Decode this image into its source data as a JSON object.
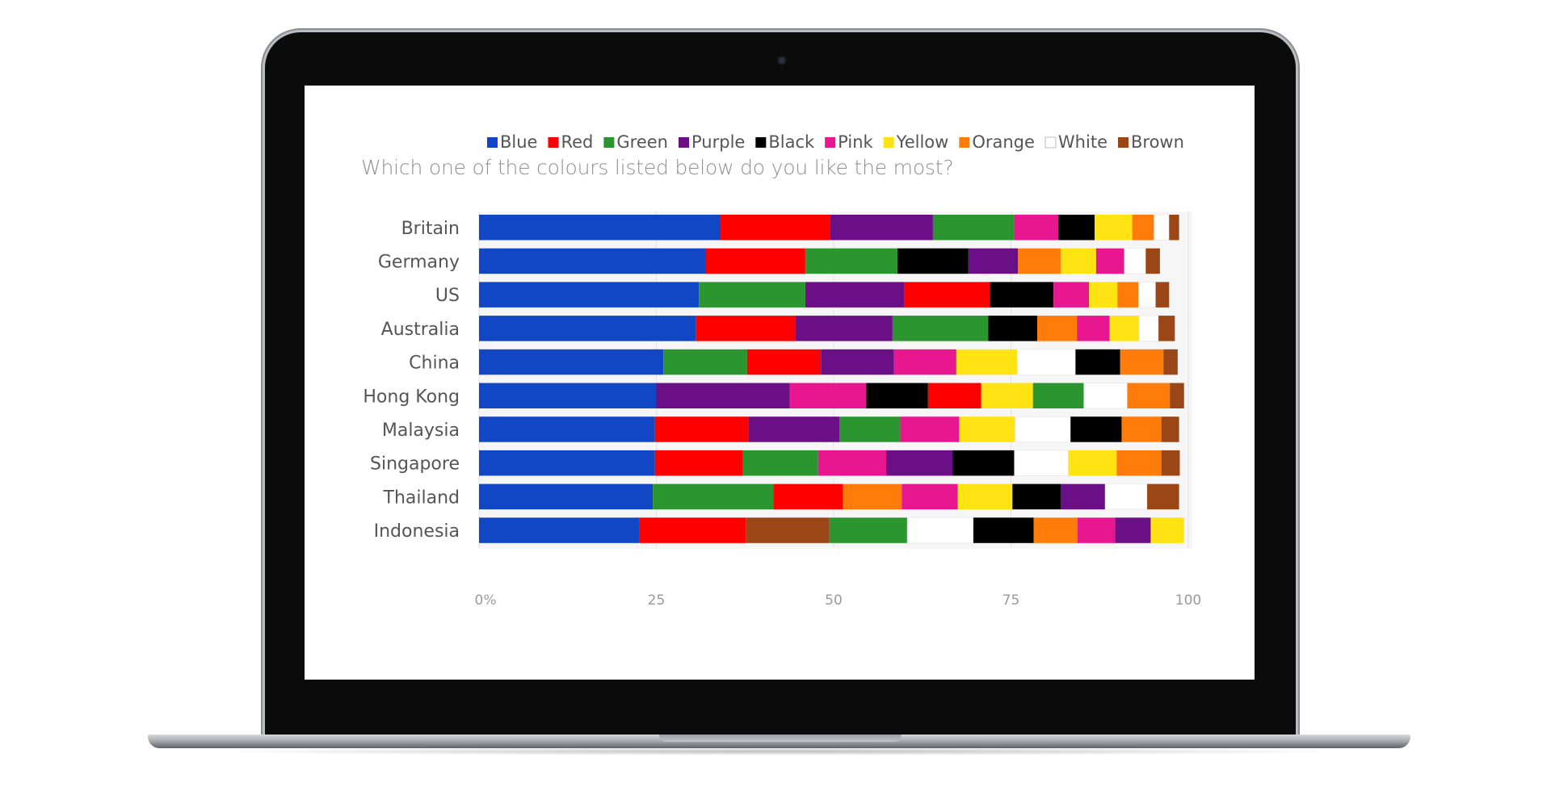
{
  "chart_data": {
    "type": "bar",
    "stacked": true,
    "orientation": "horizontal",
    "title": "Which one of the colours listed below do you like the most?",
    "legend_position": "top",
    "xlim": [
      0,
      100
    ],
    "xticks": [
      0,
      25,
      50,
      75,
      100
    ],
    "xtick_labels": [
      "0%",
      "25",
      "50",
      "75",
      "100"
    ],
    "grid": true,
    "colors": {
      "Blue": "#1147c4",
      "Red": "#ff0000",
      "Green": "#2b962f",
      "Purple": "#6b0f86",
      "Black": "#000000",
      "Pink": "#e8168f",
      "Yellow": "#ffe312",
      "Orange": "#ff7c0a",
      "White": "#ffffff",
      "Brown": "#9b4617"
    },
    "legend": [
      "Blue",
      "Red",
      "Green",
      "Purple",
      "Black",
      "Pink",
      "Yellow",
      "Orange",
      "White",
      "Brown"
    ],
    "categories": [
      {
        "name": "Britain",
        "segments": [
          [
            "Blue",
            34
          ],
          [
            "Red",
            15.5
          ],
          [
            "Purple",
            14.5
          ],
          [
            "Green",
            11.5
          ],
          [
            "Pink",
            6.2
          ],
          [
            "Black",
            5.1
          ],
          [
            "Yellow",
            5.3
          ],
          [
            "Orange",
            3.1
          ],
          [
            "White",
            2.1
          ],
          [
            "Brown",
            1.4
          ]
        ]
      },
      {
        "name": "Germany",
        "segments": [
          [
            "Blue",
            32
          ],
          [
            "Red",
            14
          ],
          [
            "Green",
            13
          ],
          [
            "Black",
            10
          ],
          [
            "Purple",
            7
          ],
          [
            "Orange",
            6
          ],
          [
            "Yellow",
            5
          ],
          [
            "Pink",
            4
          ],
          [
            "White",
            3
          ],
          [
            "Brown",
            2
          ]
        ]
      },
      {
        "name": "US",
        "segments": [
          [
            "Blue",
            31
          ],
          [
            "Green",
            15
          ],
          [
            "Purple",
            14
          ],
          [
            "Red",
            12
          ],
          [
            "Black",
            9
          ],
          [
            "Pink",
            5
          ],
          [
            "Yellow",
            4
          ],
          [
            "Orange",
            3
          ],
          [
            "White",
            2.4
          ],
          [
            "Brown",
            1.9
          ]
        ]
      },
      {
        "name": "Australia",
        "segments": [
          [
            "Blue",
            30.6
          ],
          [
            "Red",
            14
          ],
          [
            "Purple",
            13.7
          ],
          [
            "Green",
            13.5
          ],
          [
            "Black",
            6.9
          ],
          [
            "Orange",
            5.6
          ],
          [
            "Pink",
            4.6
          ],
          [
            "Yellow",
            4.2
          ],
          [
            "White",
            2.7
          ],
          [
            "Brown",
            2.3
          ]
        ]
      },
      {
        "name": "China",
        "segments": [
          [
            "Blue",
            26
          ],
          [
            "Green",
            11.8
          ],
          [
            "Red",
            10.4
          ],
          [
            "Purple",
            10.3
          ],
          [
            "Pink",
            8.8
          ],
          [
            "Yellow",
            8.6
          ],
          [
            "White",
            8.2
          ],
          [
            "Black",
            6.3
          ],
          [
            "Orange",
            6.1
          ],
          [
            "Brown",
            2
          ]
        ]
      },
      {
        "name": "Hong Kong",
        "segments": [
          [
            "Blue",
            25
          ],
          [
            "Purple",
            18.8
          ],
          [
            "Pink",
            10.8
          ],
          [
            "Black",
            8.7
          ],
          [
            "Red",
            7.5
          ],
          [
            "Yellow",
            7.3
          ],
          [
            "Green",
            7.2
          ],
          [
            "White",
            6.1
          ],
          [
            "Orange",
            6
          ],
          [
            "Brown",
            2
          ]
        ]
      },
      {
        "name": "Malaysia",
        "segments": [
          [
            "Blue",
            24.8
          ],
          [
            "Red",
            13.2
          ],
          [
            "Purple",
            12.8
          ],
          [
            "Green",
            8.6
          ],
          [
            "Pink",
            8.3
          ],
          [
            "Yellow",
            7.9
          ],
          [
            "White",
            7.8
          ],
          [
            "Black",
            7.2
          ],
          [
            "Orange",
            5.6
          ],
          [
            "Brown",
            2.5
          ]
        ]
      },
      {
        "name": "Singapore",
        "segments": [
          [
            "Blue",
            24.8
          ],
          [
            "Red",
            12.4
          ],
          [
            "Green",
            10.6
          ],
          [
            "Pink",
            9.6
          ],
          [
            "Purple",
            9.4
          ],
          [
            "Black",
            8.7
          ],
          [
            "White",
            7.6
          ],
          [
            "Yellow",
            6.8
          ],
          [
            "Orange",
            6.3
          ],
          [
            "Brown",
            2.6
          ]
        ]
      },
      {
        "name": "Thailand",
        "segments": [
          [
            "Blue",
            24.5
          ],
          [
            "Green",
            17
          ],
          [
            "Red",
            9.8
          ],
          [
            "Orange",
            8.3
          ],
          [
            "Pink",
            7.9
          ],
          [
            "Yellow",
            7.7
          ],
          [
            "Black",
            6.8
          ],
          [
            "Purple",
            6.3
          ],
          [
            "White",
            5.9
          ],
          [
            "Brown",
            4.5
          ]
        ]
      },
      {
        "name": "Indonesia",
        "segments": [
          [
            "Blue",
            22.6
          ],
          [
            "Red",
            15
          ],
          [
            "Brown",
            11.8
          ],
          [
            "Green",
            11
          ],
          [
            "White",
            9.3
          ],
          [
            "Black",
            8.5
          ],
          [
            "Orange",
            6.2
          ],
          [
            "Pink",
            5.3
          ],
          [
            "Purple",
            5
          ],
          [
            "Yellow",
            4.7
          ]
        ]
      }
    ]
  }
}
